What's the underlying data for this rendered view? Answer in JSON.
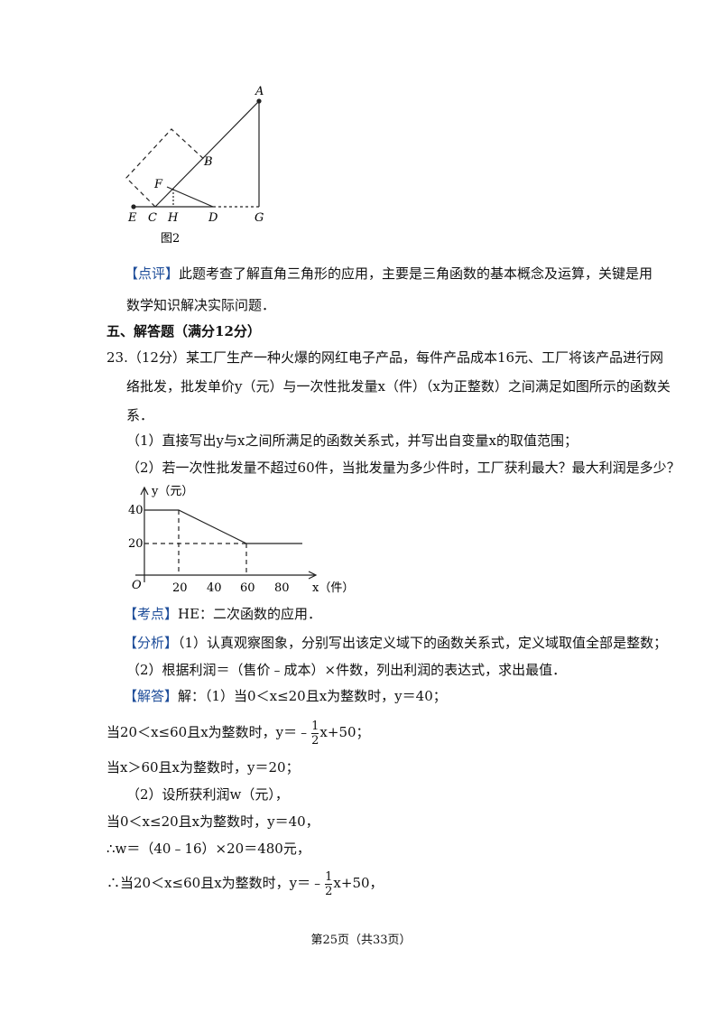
{
  "figure_geometry": {
    "labels": [
      "A",
      "B",
      "F",
      "E",
      "C",
      "H",
      "D",
      "G"
    ],
    "caption": "图2"
  },
  "comment": {
    "tag": "【点评】",
    "lines": [
      "此题考查了解直角三角形的应用，主要是三角函数的基本概念及运算，关键是用",
      "数学知识解决实际问题．"
    ]
  },
  "section_title": "五、解答题（满分12分）",
  "question": {
    "lines": [
      "23.（12分）某工厂生产一种火爆的网红电子产品，每件产品成本16元、工厂将该产品进行网",
      "络批发，批发单价y（元）与一次性批发量x（件）（x为正整数）之间满足如图所示的函数关",
      "系．",
      "（1）直接写出y与x之间所满足的函数关系式，并写出自变量x的取值范围；",
      "（2）若一次性批发量不超过60件，当批发量为多少件时，工厂获利最大？最大利润是多少？"
    ]
  },
  "figure_graph": {
    "y_label": "y（元）",
    "y_ticks": [
      "40",
      "20"
    ],
    "origin": "O",
    "x_ticks": [
      "20",
      "40",
      "60",
      "80"
    ],
    "x_label": "x（件）"
  },
  "knowledge": {
    "tag": "【考点】",
    "text": "HE：二次函数的应用．"
  },
  "analysis": {
    "tag": "【分析】",
    "lines": [
      "（1）认真观察图象，分别写出该定义域下的函数关系式，定义域取值全部是整数；",
      "（2）根据利润＝（售价﹣成本）×件数，列出利润的表达式，求出最值．"
    ]
  },
  "solution": {
    "tag": "【解答】",
    "first": "解：（1）当0＜x≤20且x为整数时，y＝40；",
    "line2": {
      "before": "当20＜x≤60且x为整数时，y＝﹣",
      "num": "1",
      "den": "2",
      "after": "x+50；"
    },
    "lines": [
      "当x＞60且x为整数时，y＝20；",
      "（2）设所获利润w（元），",
      "当0＜x≤20且x为整数时，y＝40，",
      "∴w＝（40﹣16）×20＝480元，"
    ],
    "line7": {
      "before": "∴当20＜x≤60且x为整数时，y＝﹣",
      "num": "1",
      "den": "2",
      "after": "x+50，"
    }
  },
  "footer": "第25页（共33页）"
}
